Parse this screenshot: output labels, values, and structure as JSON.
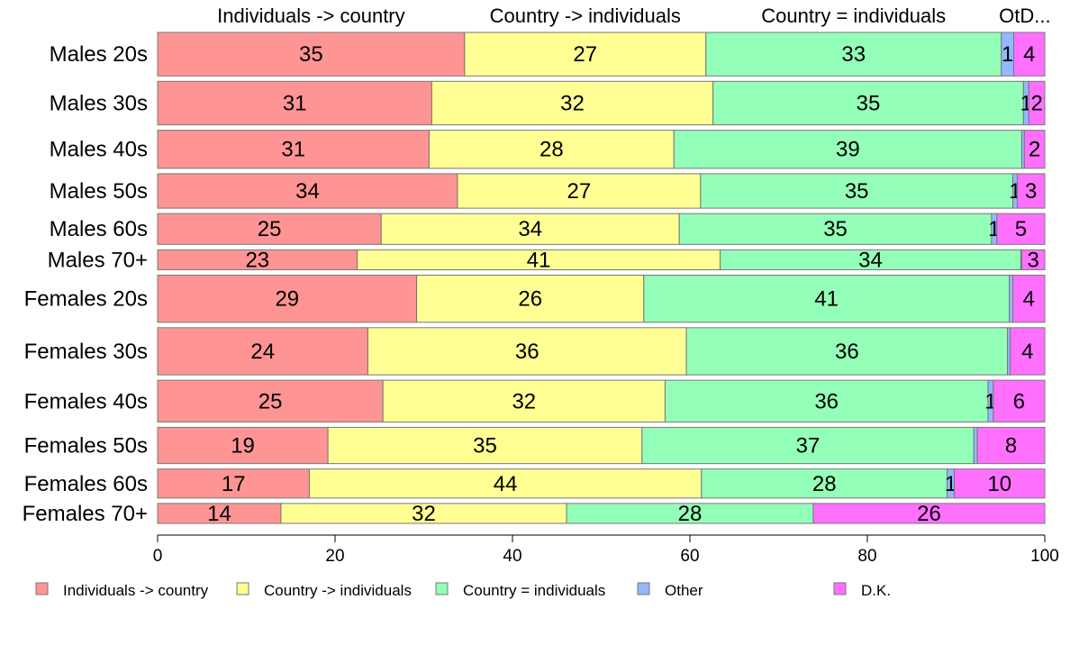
{
  "chart_data": {
    "type": "bar",
    "orientation": "horizontal",
    "stacked": true,
    "categories": [
      "Males 20s",
      "Males 30s",
      "Males 40s",
      "Males 50s",
      "Males 60s",
      "Males 70+",
      "Females 20s",
      "Females 30s",
      "Females 40s",
      "Females 50s",
      "Females 60s",
      "Females 70+"
    ],
    "bar_width_weights": [
      48,
      48,
      42,
      38,
      34,
      22,
      52,
      52,
      46,
      40,
      32,
      22
    ],
    "series": [
      {
        "name": "Individuals -> country",
        "color": "#FF9494",
        "values": [
          34.6,
          30.9,
          30.6,
          33.8,
          25.2,
          22.5,
          29.2,
          23.7,
          25.4,
          19.2,
          17.1,
          13.9
        ],
        "labels": [
          "35",
          "31",
          "31",
          "34",
          "25",
          "23",
          "29",
          "24",
          "25",
          "19",
          "17",
          "14"
        ]
      },
      {
        "name": "Country -> individuals",
        "color": "#FFFF94",
        "values": [
          27.2,
          31.7,
          27.6,
          27.4,
          33.6,
          40.9,
          25.6,
          35.9,
          31.8,
          35.4,
          44.2,
          32.2
        ],
        "labels": [
          "27",
          "32",
          "28",
          "27",
          "34",
          "41",
          "26",
          "36",
          "32",
          "35",
          "44",
          "32"
        ]
      },
      {
        "name": "Country = individuals",
        "color": "#94FFB8",
        "values": [
          33.3,
          35.0,
          39.2,
          35.2,
          35.2,
          33.9,
          41.2,
          36.2,
          36.4,
          37.4,
          27.7,
          27.8
        ],
        "labels": [
          "33",
          "35",
          "39",
          "35",
          "35",
          "34",
          "41",
          "36",
          "36",
          "37",
          "28",
          "28"
        ]
      },
      {
        "name": "Other",
        "color": "#94B8FF",
        "values": [
          1.4,
          0.6,
          0.3,
          0.5,
          0.6,
          0.1,
          0.4,
          0.3,
          0.6,
          0.4,
          0.8,
          0.0
        ],
        "labels": [
          "1",
          "1",
          "",
          "1",
          "1",
          "",
          "",
          "",
          "1",
          "",
          "1",
          ""
        ]
      },
      {
        "name": "D.K.",
        "color": "#FF70FF",
        "values": [
          3.5,
          1.8,
          2.3,
          3.1,
          5.4,
          2.6,
          3.6,
          3.9,
          5.8,
          7.6,
          10.2,
          26.1
        ],
        "labels": [
          "4",
          "2",
          "2",
          "3",
          "5",
          "3",
          "4",
          "4",
          "6",
          "8",
          "10",
          "26"
        ]
      }
    ],
    "top_labels": [
      "Individuals -> country",
      "Country -> individuals",
      "Country = individuals",
      "OtD..."
    ],
    "xlim": [
      0,
      100
    ],
    "xticks": [
      "0",
      "20",
      "40",
      "60",
      "80",
      "100"
    ],
    "grid": false,
    "legend_position": "bottom"
  }
}
